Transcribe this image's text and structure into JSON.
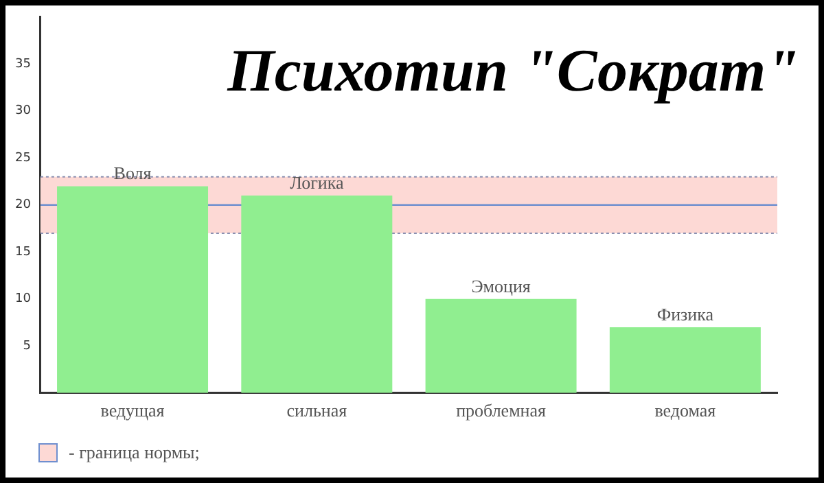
{
  "chart_data": {
    "type": "bar",
    "title": "Психотип \"Сократ\"",
    "categories": [
      "ведущая",
      "сильная",
      "проблемная",
      "ведомая"
    ],
    "values": [
      22,
      21,
      10,
      7
    ],
    "color": "#90ee90",
    "value_labels": [
      "Воля",
      "Логика",
      "Эмоция",
      "Физика"
    ],
    "ylim": [
      0,
      40
    ],
    "yticks": [
      5,
      10,
      15,
      20,
      25,
      30,
      35
    ],
    "grid": false,
    "bands": [
      {
        "axis": "y",
        "from": 17,
        "to": 23,
        "label": "- граница нормы;",
        "color": "#fdd9d5"
      }
    ],
    "ref_lines": [
      {
        "axis": "y",
        "value": 20,
        "color": "#6f8fcf",
        "line_style": "solid"
      },
      {
        "axis": "y",
        "value": 17,
        "color": "#8a8fb0",
        "line_style": "dotted"
      },
      {
        "axis": "y",
        "value": 23,
        "color": "#8a8fb0",
        "line_style": "dotted"
      }
    ],
    "legend": "bottom left"
  }
}
